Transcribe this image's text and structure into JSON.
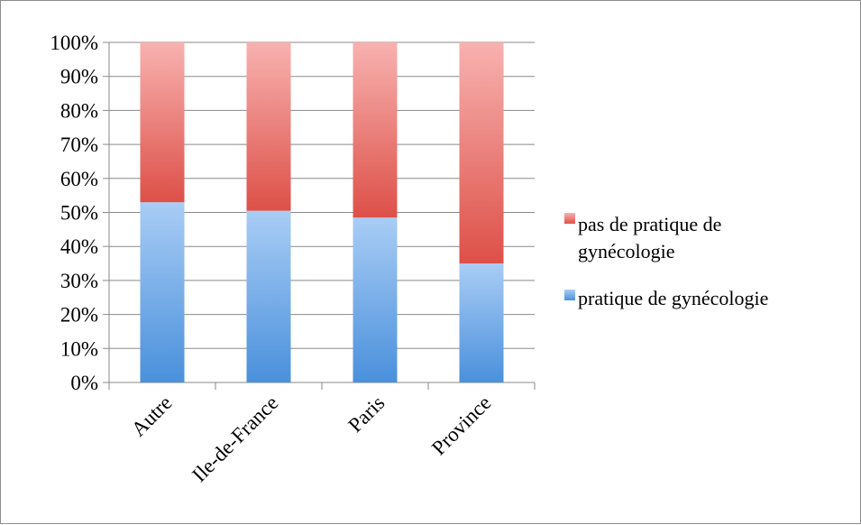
{
  "chart_data": {
    "type": "bar",
    "stacked": true,
    "percent_stacked": true,
    "categories": [
      "Autre",
      "Ile-de-France",
      "Paris",
      "Province"
    ],
    "series": [
      {
        "name": "pratique de gynécologie",
        "values": [
          53,
          50.5,
          48.5,
          35
        ],
        "color": "#5b9bd5"
      },
      {
        "name": "pas de pratique de gynécologie",
        "values": [
          47,
          49.5,
          51.5,
          65
        ],
        "color": "#e0605a"
      }
    ],
    "ylim": [
      0,
      100
    ],
    "y_ticks": [
      "0%",
      "10%",
      "20%",
      "30%",
      "40%",
      "50%",
      "60%",
      "70%",
      "80%",
      "90%",
      "100%"
    ],
    "grid": true,
    "legend_position": "right",
    "legend": [
      {
        "label_lines": [
          "pas de pratique de",
          "gynécologie"
        ],
        "series": 1
      },
      {
        "label_lines": [
          "pratique de gynécologie"
        ],
        "series": 0
      }
    ]
  }
}
